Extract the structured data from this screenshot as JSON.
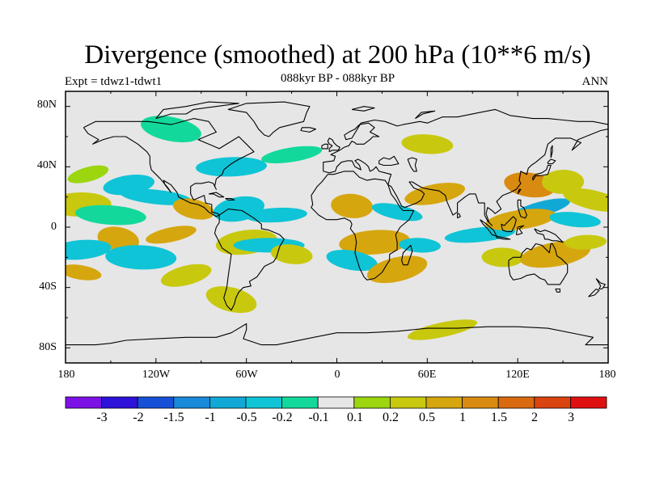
{
  "title": "Divergence (smoothed) at 200 hPa (10**6 m/s)",
  "subtitle": "088kyr BP - 088kyr BP",
  "left_label": "Expt = tdwz1-tdwt1",
  "right_label": "ANN",
  "lat_ticks": [
    "80N",
    "40N",
    "0",
    "40S",
    "80S"
  ],
  "lon_ticks": [
    "180",
    "120W",
    "60W",
    "0",
    "60E",
    "120E",
    "180"
  ],
  "colors": {
    "background_fill": "#e6e6e6",
    "colorbar": [
      "#7d12e6",
      "#2f12d9",
      "#1650d6",
      "#1989d9",
      "#12a8d6",
      "#0fc4d6",
      "#12d99b",
      "#e6e6e6",
      "#9bd60f",
      "#c8c80f",
      "#d6a60f",
      "#d98a10",
      "#d96a10",
      "#d94410",
      "#e01010"
    ]
  },
  "colorbar_labels": [
    "-3",
    "-2",
    "-1.5",
    "-1",
    "-0.5",
    "-0.2",
    "-0.1",
    "0.1",
    "0.2",
    "0.5",
    "1",
    "1.5",
    "2",
    "3"
  ],
  "chart_data": {
    "type": "heatmap",
    "map_projection": "cylindrical equidistant",
    "variable_units": "10**6 m/s",
    "x_range_deg": [
      -180,
      180
    ],
    "y_range_deg": [
      -90,
      90
    ],
    "contour_levels": [
      -3,
      -2,
      -1.5,
      -1,
      -0.5,
      -0.2,
      -0.1,
      0.1,
      0.2,
      0.5,
      1,
      1.5,
      2,
      3
    ],
    "colorbar_position": "bottom",
    "features": [
      {
        "lon": -165,
        "lat": 35,
        "value": 0.15
      },
      {
        "lon": -138,
        "lat": 28,
        "value": -0.5
      },
      {
        "lon": -170,
        "lat": 15,
        "value": 0.3
      },
      {
        "lon": -120,
        "lat": 20,
        "value": -0.5
      },
      {
        "lon": -95,
        "lat": 12,
        "value": 0.5
      },
      {
        "lon": -65,
        "lat": 12,
        "value": -0.5
      },
      {
        "lon": -40,
        "lat": 8,
        "value": -0.5
      },
      {
        "lon": -150,
        "lat": 8,
        "value": -0.2
      },
      {
        "lon": -145,
        "lat": -8,
        "value": 0.5
      },
      {
        "lon": -110,
        "lat": -5,
        "value": 0.5
      },
      {
        "lon": -170,
        "lat": -15,
        "value": -0.5
      },
      {
        "lon": -130,
        "lat": -20,
        "value": -0.5
      },
      {
        "lon": -170,
        "lat": -30,
        "value": 0.5
      },
      {
        "lon": -100,
        "lat": -32,
        "value": 0.3
      },
      {
        "lon": -60,
        "lat": -10,
        "value": 0.3
      },
      {
        "lon": -45,
        "lat": -12,
        "value": -0.5
      },
      {
        "lon": -30,
        "lat": -18,
        "value": 0.3
      },
      {
        "lon": -70,
        "lat": -48,
        "value": 0.3
      },
      {
        "lon": -30,
        "lat": 48,
        "value": -0.2
      },
      {
        "lon": -70,
        "lat": 40,
        "value": -0.3
      },
      {
        "lon": 10,
        "lat": 14,
        "value": 0.5
      },
      {
        "lon": 40,
        "lat": 10,
        "value": -0.5
      },
      {
        "lon": 65,
        "lat": 22,
        "value": 0.5
      },
      {
        "lon": 25,
        "lat": -10,
        "value": 0.5
      },
      {
        "lon": 55,
        "lat": -12,
        "value": -0.5
      },
      {
        "lon": 10,
        "lat": -22,
        "value": -0.3
      },
      {
        "lon": 40,
        "lat": -28,
        "value": 0.5
      },
      {
        "lon": 95,
        "lat": -5,
        "value": -0.5
      },
      {
        "lon": 110,
        "lat": -20,
        "value": 0.2
      },
      {
        "lon": 128,
        "lat": 28,
        "value": 1.0
      },
      {
        "lon": 135,
        "lat": 12,
        "value": -1.0
      },
      {
        "lon": 122,
        "lat": 5,
        "value": 0.5
      },
      {
        "lon": 150,
        "lat": 30,
        "value": 0.3
      },
      {
        "lon": 158,
        "lat": 5,
        "value": -0.5
      },
      {
        "lon": 170,
        "lat": 18,
        "value": 0.3
      },
      {
        "lon": 145,
        "lat": -18,
        "value": 0.5
      },
      {
        "lon": 165,
        "lat": -10,
        "value": 0.3
      },
      {
        "lon": 60,
        "lat": 55,
        "value": 0.2
      },
      {
        "lon": -110,
        "lat": 65,
        "value": -0.2
      },
      {
        "lon": 70,
        "lat": -68,
        "value": 0.2
      }
    ]
  }
}
